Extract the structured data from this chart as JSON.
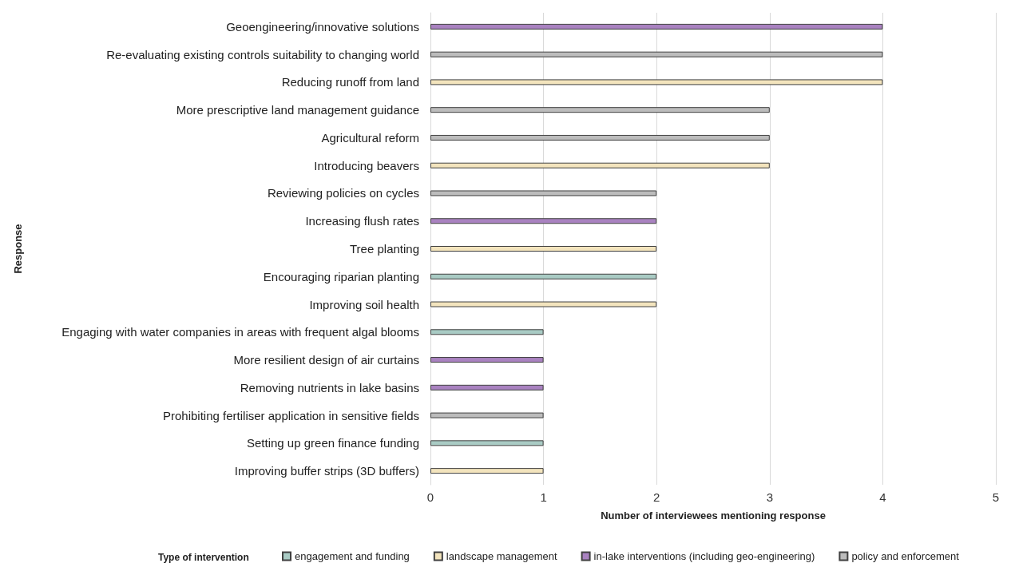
{
  "chart_data": {
    "type": "bar",
    "orientation": "horizontal",
    "stacked": true,
    "xlabel": "Number of interviewees mentioning response",
    "ylabel": "Response",
    "legend_title": "Type of intervention",
    "categories": [
      "Geoengineering/innovative solutions",
      "Re-evaluating existing controls suitability to changing world",
      "Reducing runoff from land",
      "More prescriptive land management guidance",
      "Agricultural reform",
      "Introducing beavers",
      "Reviewing policies on cycles",
      "Increasing flush rates",
      "Tree planting",
      "Encouraging riparian planting",
      "Improving soil health",
      "Engaging with water companies in areas with frequent algal blooms",
      "More resilient design of air curtains",
      "Removing nutrients in lake basins",
      "Prohibiting fertiliser application in sensitive fields",
      "Setting up green finance funding",
      "Improving buffer strips (3D buffers)"
    ],
    "series": [
      {
        "name": "engagement and funding",
        "color": "#a9cbc4",
        "values": [
          null,
          null,
          null,
          null,
          null,
          null,
          null,
          null,
          null,
          2,
          null,
          1,
          null,
          null,
          null,
          1,
          null
        ]
      },
      {
        "name": "landscape management",
        "color": "#f3e4bd",
        "values": [
          null,
          null,
          4,
          null,
          null,
          3,
          null,
          null,
          2,
          null,
          2,
          null,
          null,
          null,
          null,
          null,
          1
        ]
      },
      {
        "name": "in-lake interventions (including geo-engineering)",
        "color": "#a982c0",
        "values": [
          4,
          null,
          null,
          null,
          null,
          null,
          null,
          2,
          null,
          null,
          null,
          null,
          1,
          1,
          null,
          null,
          null
        ]
      },
      {
        "name": "policy and enforcement",
        "color": "#bcbcbc",
        "values": [
          null,
          4,
          null,
          3,
          3,
          null,
          2,
          null,
          null,
          null,
          null,
          null,
          null,
          null,
          1,
          null,
          null
        ]
      }
    ],
    "xlim": [
      0,
      5
    ],
    "xticks": [
      0,
      1,
      2,
      3,
      4,
      5
    ],
    "grid": "x",
    "legend": "bottom"
  }
}
